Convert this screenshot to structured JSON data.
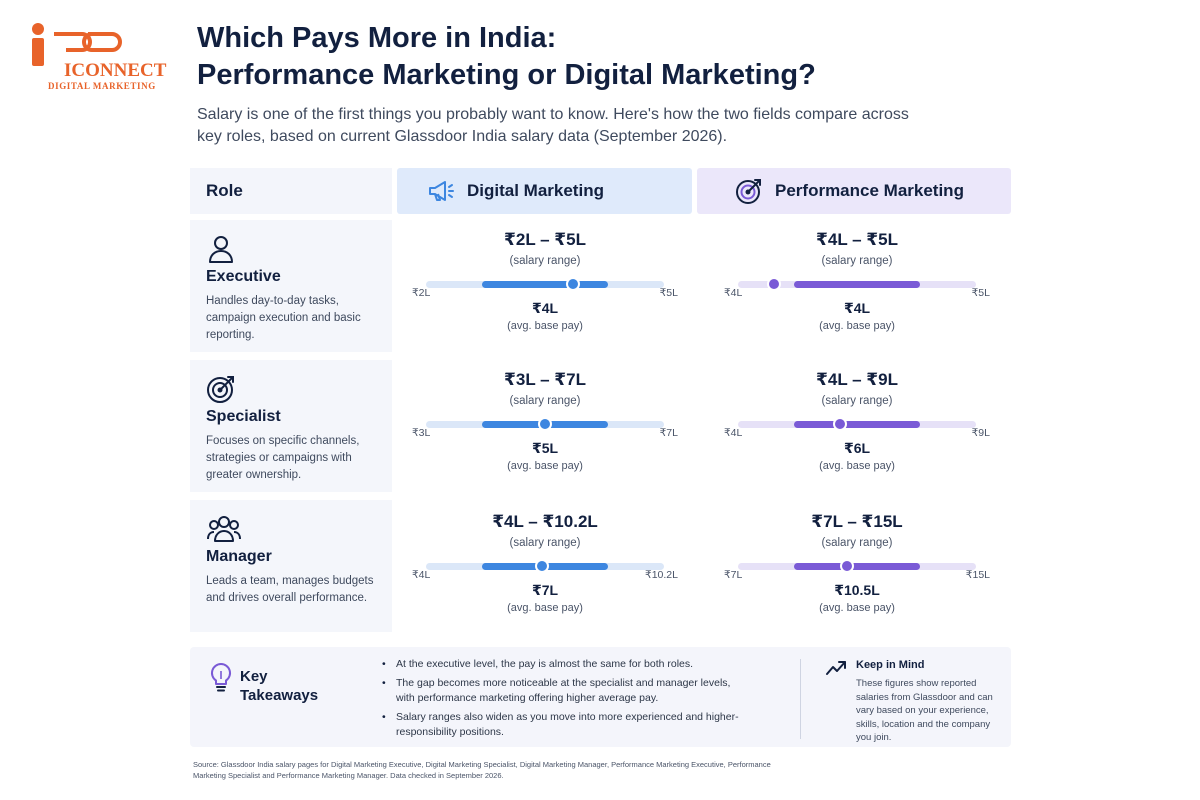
{
  "brand": {
    "logo_text": "ICONNECT",
    "logo_sub": "DIGITAL MARKETING",
    "color": "#e8632a"
  },
  "header": {
    "title_line1": "Which Pays More in India:",
    "title_line2": "Performance Marketing or Digital Marketing?",
    "subtitle": "Salary is one of the first things you probably want to know. Here's how the two fields compare across key roles, based on current Glassdoor India salary data (September 2026)."
  },
  "table": {
    "role_header": "Role",
    "dm_header": "Digital Marketing",
    "pm_header": "Performance Marketing",
    "range_caption": "(salary range)",
    "avg_caption": "(avg. base pay)",
    "roles": [
      {
        "name": "Executive",
        "icon": "person-icon",
        "description": "Handles day-to-day tasks, campaign execution and basic reporting.",
        "dm": {
          "range": "₹2L – ₹5L",
          "min_label": "₹2L",
          "max_label": "₹5L",
          "avg_label": "₹4L"
        },
        "pm": {
          "range": "₹4L – ₹5L",
          "min_label": "₹4L",
          "max_label": "₹5L",
          "avg_label": "₹4L"
        }
      },
      {
        "name": "Specialist",
        "icon": "target-icon",
        "description": "Focuses on specific channels, strategies or campaigns with greater ownership.",
        "dm": {
          "range": "₹3L – ₹7L",
          "min_label": "₹3L",
          "max_label": "₹7L",
          "avg_label": "₹5L"
        },
        "pm": {
          "range": "₹4L – ₹9L",
          "min_label": "₹4L",
          "max_label": "₹9L",
          "avg_label": "₹6L"
        }
      },
      {
        "name": "Manager",
        "icon": "team-icon",
        "description": "Leads a team, manages budgets and drives overall performance.",
        "dm": {
          "range": "₹4L – ₹10.2L",
          "min_label": "₹4L",
          "max_label": "₹10.2L",
          "avg_label": "₹7L"
        },
        "pm": {
          "range": "₹7L – ₹15L",
          "min_label": "₹7L",
          "max_label": "₹15L",
          "avg_label": "₹10.5L"
        }
      }
    ]
  },
  "chart_data": {
    "type": "table",
    "unit": "₹ lakh per year",
    "roles": [
      "Executive",
      "Specialist",
      "Manager"
    ],
    "series": [
      {
        "name": "Digital Marketing",
        "min": [
          2,
          3,
          4
        ],
        "max": [
          5,
          7,
          10.2
        ],
        "avg": [
          4,
          5,
          7
        ]
      },
      {
        "name": "Performance Marketing",
        "min": [
          4,
          4,
          7
        ],
        "max": [
          5,
          9,
          15
        ],
        "avg": [
          4,
          6,
          10.5
        ]
      }
    ]
  },
  "takeaways": {
    "title_line1": "Key",
    "title_line2": "Takeaways",
    "items": [
      "At the executive level, the pay is almost the same for both roles.",
      "The gap becomes more noticeable at the specialist and manager levels, with performance marketing offering higher average pay.",
      "Salary ranges also widen as you move into more experienced and higher-responsibility positions."
    ],
    "keep_title": "Keep in Mind",
    "keep_text": "These figures show reported salaries from Glassdoor and can vary based on your experience, skills, location and the company you join."
  },
  "source": "Source: Glassdoor India salary pages for Digital Marketing Executive, Digital Marketing Specialist, Digital Marketing Manager, Performance Marketing Executive, Performance Marketing Specialist and Performance Marketing Manager. Data checked in September 2026.",
  "colors": {
    "dm_accent": "#3d86e0",
    "dm_track": "#dbe7f8",
    "pm_accent": "#7a5ad6",
    "pm_track": "#e6e1f7",
    "navy": "#12203f"
  }
}
